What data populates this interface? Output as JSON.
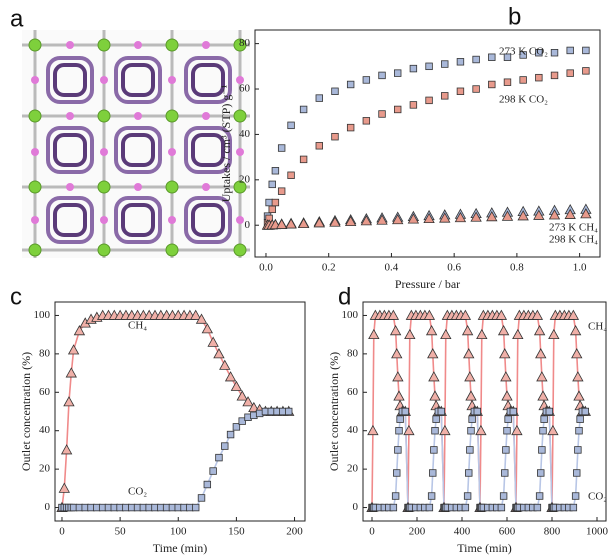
{
  "panel_labels": [
    "a",
    "b",
    "c",
    "d"
  ],
  "chart_data": [
    {
      "type": "scatter",
      "xlabel": "Pressure / bar",
      "ylabel": "Uptakes / cm³ (STP) g⁻¹",
      "xlim": [
        -0.035,
        1.065
      ],
      "ylim": [
        -14,
        86
      ],
      "xticks": [
        {
          "value": 0,
          "label": "0.0"
        },
        0.2,
        0.4,
        0.6,
        0.8,
        {
          "value": 1,
          "label": "1.0"
        }
      ],
      "yticks": [
        0,
        20,
        40,
        60,
        80
      ],
      "x": [
        0.005,
        0.01,
        0.02,
        0.03,
        0.05,
        0.08,
        0.12,
        0.17,
        0.22,
        0.27,
        0.32,
        0.37,
        0.42,
        0.47,
        0.52,
        0.57,
        0.62,
        0.67,
        0.72,
        0.77,
        0.82,
        0.87,
        0.92,
        0.97,
        1.02
      ],
      "series": [
        {
          "name": "273 K CO₂",
          "color": "#a9b8d9",
          "marker": "square",
          "values": [
            4,
            10,
            18,
            24,
            34,
            44,
            51,
            56,
            59,
            62,
            64,
            66,
            67,
            69,
            70,
            71,
            72,
            73,
            74,
            74,
            75,
            76,
            76,
            77,
            77
          ]
        },
        {
          "name": "298 K CO₂",
          "color": "#e89a8c",
          "marker": "square",
          "values": [
            1,
            3,
            7,
            10,
            15,
            22,
            29,
            35,
            39,
            43,
            46,
            49,
            51,
            53,
            55,
            57,
            59,
            60,
            62,
            63,
            64,
            65,
            66,
            67,
            68
          ]
        },
        {
          "name": "273 K CH₄",
          "color": "#a9b8d9",
          "marker": "triangle",
          "values": [
            0,
            0,
            0.2,
            0.3,
            0.5,
            0.8,
            1,
            1.5,
            2,
            2.4,
            2.8,
            3.2,
            3.5,
            3.8,
            4.2,
            4.5,
            4.8,
            5.1,
            5.4,
            5.7,
            6,
            6.2,
            6.5,
            6.8,
            7
          ]
        },
        {
          "name": "298 K CH₄",
          "color": "#e89a8c",
          "marker": "triangle",
          "values": [
            0,
            0,
            0.1,
            0.2,
            0.3,
            0.5,
            0.7,
            1,
            1.3,
            1.6,
            1.9,
            2.2,
            2.4,
            2.7,
            2.9,
            3.1,
            3.3,
            3.5,
            3.7,
            3.9,
            4.1,
            4.3,
            4.5,
            4.7,
            5
          ]
        }
      ]
    },
    {
      "type": "line",
      "xlabel": "Time (min)",
      "ylabel": "Outlet concentration (%)",
      "xlim": [
        -6,
        209
      ],
      "ylim": [
        -7,
        107
      ],
      "xticks": [
        0,
        50,
        100,
        150,
        200
      ],
      "yticks": [
        0,
        20,
        40,
        60,
        80,
        100
      ],
      "x": [
        0,
        2,
        4,
        6,
        8,
        10,
        15,
        20,
        25,
        30,
        35,
        40,
        45,
        50,
        55,
        60,
        65,
        70,
        75,
        80,
        85,
        90,
        95,
        100,
        105,
        110,
        115,
        120,
        125,
        130,
        135,
        140,
        145,
        150,
        155,
        160,
        165,
        170,
        175,
        180,
        185,
        190,
        195
      ],
      "series": [
        {
          "name": "CH₄",
          "color": "#f0b0a8",
          "line_color": "#f08a8a",
          "marker": "triangle",
          "values": [
            0,
            10,
            30,
            55,
            70,
            82,
            92,
            96,
            98,
            99,
            100,
            100,
            100,
            100,
            100,
            100,
            100,
            100,
            100,
            100,
            100,
            100,
            100,
            100,
            100,
            100,
            100,
            98,
            93,
            86,
            80,
            74,
            68,
            63,
            58,
            55,
            52,
            51,
            50,
            50,
            50,
            50,
            50
          ]
        },
        {
          "name": "CO₂",
          "color": "#a9b8d9",
          "line_color": "#b8c6e6",
          "marker": "square",
          "values": [
            0,
            0,
            0,
            0,
            0,
            0,
            0,
            0,
            0,
            0,
            0,
            0,
            0,
            0,
            0,
            0,
            0,
            0,
            0,
            0,
            0,
            0,
            0,
            0,
            0,
            0,
            0,
            5,
            12,
            19,
            26,
            32,
            38,
            42,
            45,
            47,
            48,
            49,
            50,
            50,
            50,
            50,
            50
          ]
        }
      ]
    },
    {
      "type": "line",
      "xlabel": "Time (min)",
      "ylabel": "Outlet concentration (%)",
      "xlim": [
        -40,
        1040
      ],
      "ylim": [
        -7,
        107
      ],
      "xticks": [
        0,
        200,
        400,
        600,
        800,
        1000
      ],
      "yticks": [
        0,
        20,
        40,
        60,
        80,
        100
      ],
      "x": [
        0,
        4,
        8,
        15,
        35,
        55,
        75,
        95,
        105,
        110,
        115,
        120,
        125,
        135,
        148,
        160,
        164,
        168,
        175,
        195,
        215,
        235,
        255,
        265,
        270,
        275,
        280,
        285,
        295,
        308,
        320,
        324,
        328,
        335,
        355,
        375,
        395,
        415,
        425,
        430,
        435,
        440,
        445,
        455,
        468,
        480,
        484,
        488,
        495,
        515,
        535,
        555,
        575,
        585,
        590,
        595,
        600,
        605,
        615,
        628,
        640,
        644,
        648,
        655,
        675,
        695,
        715,
        735,
        745,
        750,
        755,
        760,
        765,
        775,
        788,
        800,
        804,
        808,
        815,
        835,
        855,
        875,
        895,
        905,
        910,
        915,
        920,
        925,
        935,
        948
      ],
      "series": [
        {
          "name": "CH₄",
          "color": "#f0b0a8",
          "line_color": "#f08a8a",
          "marker": "triangle",
          "values": [
            0,
            40,
            90,
            100,
            100,
            100,
            100,
            100,
            92,
            80,
            68,
            58,
            53,
            50,
            50,
            0,
            40,
            90,
            100,
            100,
            100,
            100,
            100,
            92,
            80,
            68,
            58,
            53,
            50,
            50,
            0,
            40,
            90,
            100,
            100,
            100,
            100,
            100,
            92,
            80,
            68,
            58,
            53,
            50,
            50,
            0,
            40,
            90,
            100,
            100,
            100,
            100,
            100,
            92,
            80,
            68,
            58,
            53,
            50,
            50,
            0,
            40,
            90,
            100,
            100,
            100,
            100,
            100,
            92,
            80,
            68,
            58,
            53,
            50,
            50,
            0,
            40,
            90,
            100,
            100,
            100,
            100,
            100,
            92,
            80,
            68,
            58,
            53,
            50,
            50
          ]
        },
        {
          "name": "CO₂",
          "color": "#a9b8d9",
          "line_color": "#b8c6e6",
          "marker": "square",
          "values": [
            0,
            0,
            0,
            0,
            0,
            0,
            0,
            0,
            6,
            18,
            30,
            40,
            46,
            50,
            50,
            0,
            0,
            0,
            0,
            0,
            0,
            0,
            0,
            6,
            18,
            30,
            40,
            46,
            50,
            50,
            0,
            0,
            0,
            0,
            0,
            0,
            0,
            0,
            6,
            18,
            30,
            40,
            46,
            50,
            50,
            0,
            0,
            0,
            0,
            0,
            0,
            0,
            0,
            6,
            18,
            30,
            40,
            46,
            50,
            50,
            0,
            0,
            0,
            0,
            0,
            0,
            0,
            0,
            6,
            18,
            30,
            40,
            46,
            50,
            50,
            0,
            0,
            0,
            0,
            0,
            0,
            0,
            0,
            6,
            18,
            30,
            40,
            46,
            50,
            50
          ]
        }
      ]
    }
  ]
}
